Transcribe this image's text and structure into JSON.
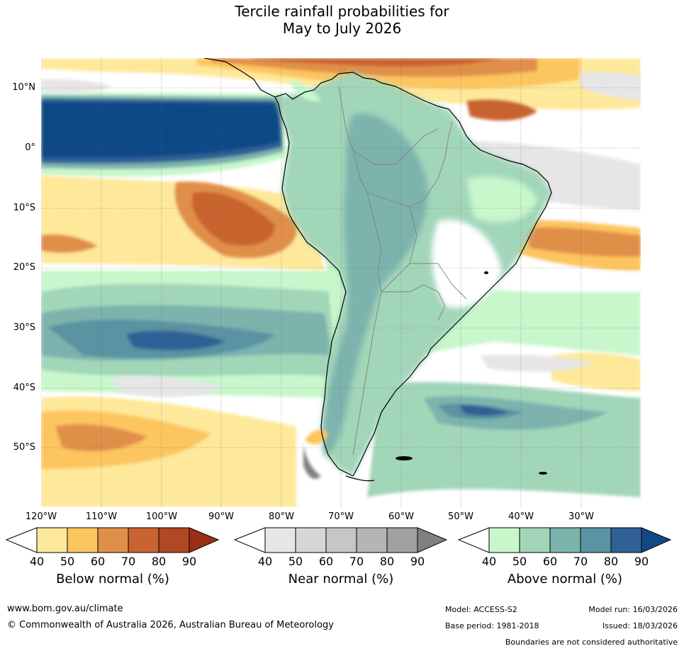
{
  "title": {
    "line1": "Tercile rainfall probabilities for",
    "line2": "May to July 2026"
  },
  "map": {
    "lat_labels": [
      "10°N",
      "0°",
      "10°S",
      "20°S",
      "30°S",
      "40°S",
      "50°S"
    ],
    "lon_labels": [
      "120°W",
      "110°W",
      "100°W",
      "90°W",
      "80°W",
      "70°W",
      "60°W",
      "50°W",
      "40°W",
      "30°W"
    ]
  },
  "colorbars": [
    {
      "id": "below",
      "title": "Below normal (%)",
      "ticks": [
        "40",
        "50",
        "60",
        "70",
        "80",
        "90"
      ],
      "colors": [
        "#ffffff",
        "#fee89a",
        "#fdc55e",
        "#e08f48",
        "#c9632f",
        "#b04725",
        "#9b2f17"
      ]
    },
    {
      "id": "near",
      "title": "Near normal (%)",
      "ticks": [
        "40",
        "50",
        "60",
        "70",
        "80",
        "90"
      ],
      "colors": [
        "#ffffff",
        "#e6e6e6",
        "#d6d6d6",
        "#c6c6c6",
        "#b5b5b5",
        "#a0a0a0",
        "#808080"
      ]
    },
    {
      "id": "above",
      "title": "Above normal (%)",
      "ticks": [
        "40",
        "50",
        "60",
        "70",
        "80",
        "90"
      ],
      "colors": [
        "#ffffff",
        "#c8f7cc",
        "#a2d6b9",
        "#7db3ad",
        "#5a93a2",
        "#2f6196",
        "#104a86"
      ]
    }
  ],
  "footer": {
    "url": "www.bom.gov.au/climate",
    "copyright": "© Commonwealth of Australia 2026, Australian Bureau of Meteorology",
    "model": "Model: ACCESS-S2",
    "base_period": "Base period: 1981-2018",
    "model_run": "Model run: 16/03/2026",
    "issued": "Issued: 18/03/2026",
    "disclaimer": "Boundaries are not considered authoritative"
  }
}
